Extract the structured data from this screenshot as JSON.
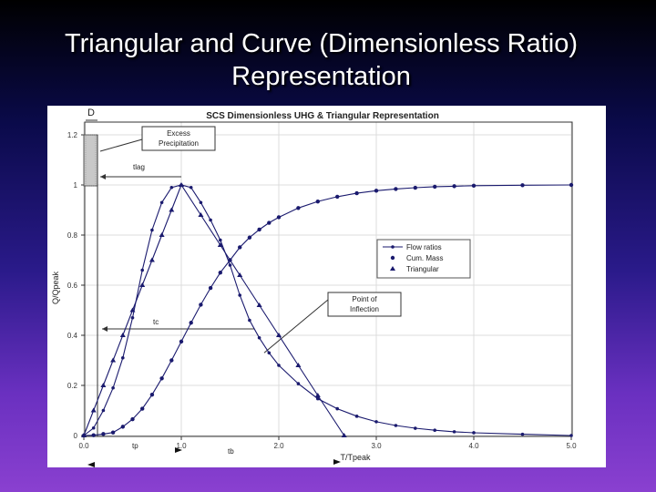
{
  "slide": {
    "title_line1": "Triangular and Curve (Dimensionless Ratio)",
    "title_line2": "Representation"
  },
  "chart_data": {
    "type": "line",
    "title": "SCS Dimensionless UHG & Triangular Representation",
    "xlabel": "T/Tpeak",
    "ylabel": "Q/Qpeak",
    "xlim": [
      0,
      5
    ],
    "ylim": [
      0,
      1.2
    ],
    "x_ticks": [
      "0.0",
      "1.0",
      "2.0",
      "3.0",
      "4.0",
      "5.0"
    ],
    "y_ticks": [
      "0",
      "0.2",
      "0.4",
      "0.6",
      "0.8",
      "1",
      "1.2"
    ],
    "legend": {
      "position": "right-center",
      "entries": [
        "Flow ratios",
        "Cum. Mass",
        "Triangular"
      ]
    },
    "series": [
      {
        "name": "Flow ratios",
        "x": [
          0,
          0.1,
          0.2,
          0.3,
          0.4,
          0.5,
          0.6,
          0.7,
          0.8,
          0.9,
          1.0,
          1.1,
          1.2,
          1.3,
          1.4,
          1.5,
          1.6,
          1.7,
          1.8,
          1.9,
          2.0,
          2.2,
          2.4,
          2.6,
          2.8,
          3.0,
          3.2,
          3.4,
          3.6,
          3.8,
          4.0,
          4.5,
          5.0
        ],
        "y": [
          0,
          0.03,
          0.1,
          0.19,
          0.31,
          0.47,
          0.66,
          0.82,
          0.93,
          0.99,
          1.0,
          0.99,
          0.93,
          0.86,
          0.78,
          0.68,
          0.56,
          0.46,
          0.39,
          0.33,
          0.28,
          0.207,
          0.147,
          0.107,
          0.077,
          0.055,
          0.04,
          0.029,
          0.021,
          0.015,
          0.011,
          0.005,
          0.0
        ]
      },
      {
        "name": "Cum. Mass",
        "x": [
          0,
          0.1,
          0.2,
          0.3,
          0.4,
          0.5,
          0.6,
          0.7,
          0.8,
          0.9,
          1.0,
          1.1,
          1.2,
          1.3,
          1.4,
          1.5,
          1.6,
          1.7,
          1.8,
          1.9,
          2.0,
          2.2,
          2.4,
          2.6,
          2.8,
          3.0,
          3.2,
          3.4,
          3.6,
          3.8,
          4.0,
          4.5,
          5.0
        ],
        "y": [
          0,
          0.001,
          0.006,
          0.012,
          0.035,
          0.065,
          0.107,
          0.163,
          0.228,
          0.3,
          0.375,
          0.45,
          0.522,
          0.589,
          0.65,
          0.7,
          0.751,
          0.79,
          0.822,
          0.849,
          0.871,
          0.908,
          0.934,
          0.953,
          0.967,
          0.977,
          0.984,
          0.989,
          0.993,
          0.995,
          0.997,
          0.999,
          1.0
        ]
      },
      {
        "name": "Triangular",
        "x": [
          0,
          0.1,
          0.2,
          0.3,
          0.4,
          0.5,
          0.6,
          0.7,
          0.8,
          0.9,
          1.0,
          1.2,
          1.4,
          1.6,
          1.8,
          2.0,
          2.2,
          2.4,
          2.67
        ],
        "y": [
          0,
          0.1,
          0.2,
          0.3,
          0.4,
          0.5,
          0.6,
          0.7,
          0.8,
          0.9,
          1.0,
          0.88,
          0.76,
          0.64,
          0.52,
          0.4,
          0.28,
          0.16,
          0.0
        ]
      }
    ],
    "annotations": [
      {
        "label": "D",
        "kind": "bar"
      },
      {
        "label": "Excess\nPrecipitation",
        "kind": "callout"
      },
      {
        "label": "t_lag",
        "kind": "span"
      },
      {
        "label": "t_c",
        "kind": "span"
      },
      {
        "label": "Point of\nInflection",
        "kind": "callout"
      },
      {
        "label": "t_p",
        "kind": "axis-span"
      },
      {
        "label": "t_b",
        "kind": "axis-span"
      }
    ]
  }
}
